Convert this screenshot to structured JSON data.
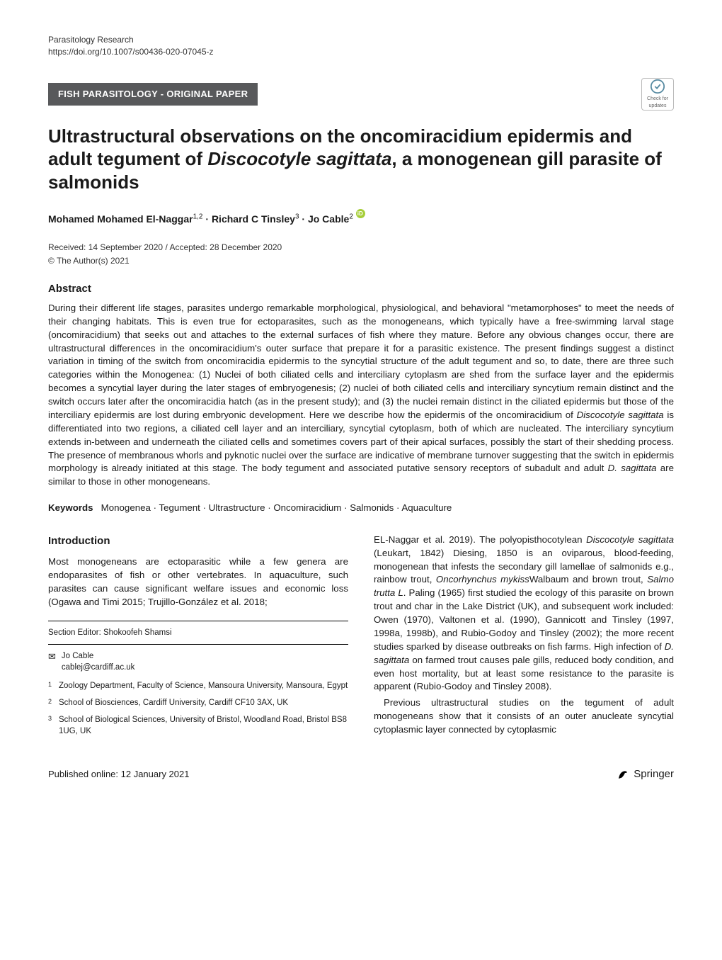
{
  "header": {
    "journal": "Parasitology Research",
    "doi": "https://doi.org/10.1007/s00436-020-07045-z",
    "category": "FISH PARASITOLOGY - ORIGINAL PAPER",
    "updates_label": "Check for updates"
  },
  "title_parts": {
    "p1": "Ultrastructural observations on the oncomiracidium epidermis and adult tegument of ",
    "italic": "Discocotyle sagittata",
    "p2": ", a monogenean gill parasite of salmonids"
  },
  "authors_html": "Mohamed Mohamed El-Naggar<sup>1,2</sup> · Richard C Tinsley<sup>3</sup> · Jo Cable<sup>2</sup>",
  "dates": "Received: 14 September 2020 / Accepted: 28 December 2020",
  "copyright": "© The Author(s) 2021",
  "abstract_label": "Abstract",
  "abstract_parts": {
    "p1": "During their different life stages, parasites undergo remarkable morphological, physiological, and behavioral \"metamorphoses\" to meet the needs of their changing habitats. This is even true for ectoparasites, such as the monogeneans, which typically have a free-swimming larval stage (oncomiracidium) that seeks out and attaches to the external surfaces of fish where they mature. Before any obvious changes occur, there are ultrastructural differences in the oncomiracidium's outer surface that prepare it for a parasitic existence. The present findings suggest a distinct variation in timing of the switch from oncomiracidia epidermis to the syncytial structure of the adult tegument and so, to date, there are three such categories within the Monogenea: (1) Nuclei of both ciliated cells and interciliary cytoplasm are shed from the surface layer and the epidermis becomes a syncytial layer during the later stages of embryogenesis; (2) nuclei of both ciliated cells and interciliary syncytium remain distinct and the switch occurs later after the oncomiracidia hatch (as in the present study); and (3) the nuclei remain distinct in the ciliated epidermis but those of the interciliary epidermis are lost during embryonic development. Here we describe how the epidermis of the oncomiracidium of ",
    "i1": "Discocotyle sagittata",
    "p2": " is differentiated into two regions, a ciliated cell layer and an interciliary, syncytial cytoplasm, both of which are nucleated. The interciliary syncytium extends in-between and underneath the ciliated cells and sometimes covers part of their apical surfaces, possibly the start of their shedding process. The presence of membranous whorls and pyknotic nuclei over the surface are indicative of membrane turnover suggesting that the switch in epidermis morphology is already initiated at this stage. The body tegument and associated putative sensory receptors of subadult and adult ",
    "i2": "D. sagittata",
    "p3": " are similar to those in other monogeneans."
  },
  "keywords_label": "Keywords",
  "keywords": "Monogenea · Tegument · Ultrastructure · Oncomiracidium · Salmonids · Aquaculture",
  "intro_label": "Introduction",
  "intro_col1": "Most monogeneans are ectoparasitic while a few genera are endoparasites of fish or other vertebrates. In aquaculture, such parasites can cause significant welfare issues and economic loss (Ogawa and Timi 2015; Trujillo-González et al. 2018;",
  "intro_col2_parts": {
    "p1": "EL-Naggar et al. 2019). The polyopisthocotylean ",
    "i1": "Discocotyle sagittata",
    "p2": " (Leukart, 1842) Diesing, 1850 is an oviparous, blood-feeding, monogenean that infests the secondary gill lamellae of salmonids e.g., rainbow trout, ",
    "i2": "Oncorhynchus mykiss",
    "p3": "Walbaum and brown trout, ",
    "i3": "Salmo trutta L",
    "p4": ". Paling (1965) first studied the ecology of this parasite on brown trout and char in the Lake District (UK), and subsequent work included: Owen (1970), Valtonen et al. (1990), Gannicott and Tinsley (1997, 1998a, 1998b), and Rubio-Godoy and Tinsley (2002); the more recent studies sparked by disease outbreaks on fish farms. High infection of ",
    "i4": "D. sagittata",
    "p5": " on farmed trout causes pale gills, reduced body condition, and even host mortality, but at least some resistance to the parasite is apparent (Rubio-Godoy and Tinsley 2008).",
    "para2": "Previous ultrastructural studies on the tegument of adult monogeneans show that it consists of an outer anucleate syncytial cytoplasmic layer connected by cytoplasmic"
  },
  "footnotes": {
    "section_editor": "Section Editor: Shokoofeh Shamsi",
    "corr_name": "Jo Cable",
    "corr_email": "cablej@cardiff.ac.uk",
    "affil1": "Zoology Department, Faculty of Science, Mansoura University, Mansoura, Egypt",
    "affil2": "School of Biosciences, Cardiff University, Cardiff CF10 3AX, UK",
    "affil3": "School of Biological Sciences, University of Bristol, Woodland Road, Bristol BS8 1UG, UK"
  },
  "footer": {
    "pub_online": "Published online: 12 January 2021",
    "publisher": "Springer"
  },
  "colors": {
    "badge_bg": "#58595b",
    "orcid": "#a6ce39",
    "text": "#1a1a1a"
  }
}
